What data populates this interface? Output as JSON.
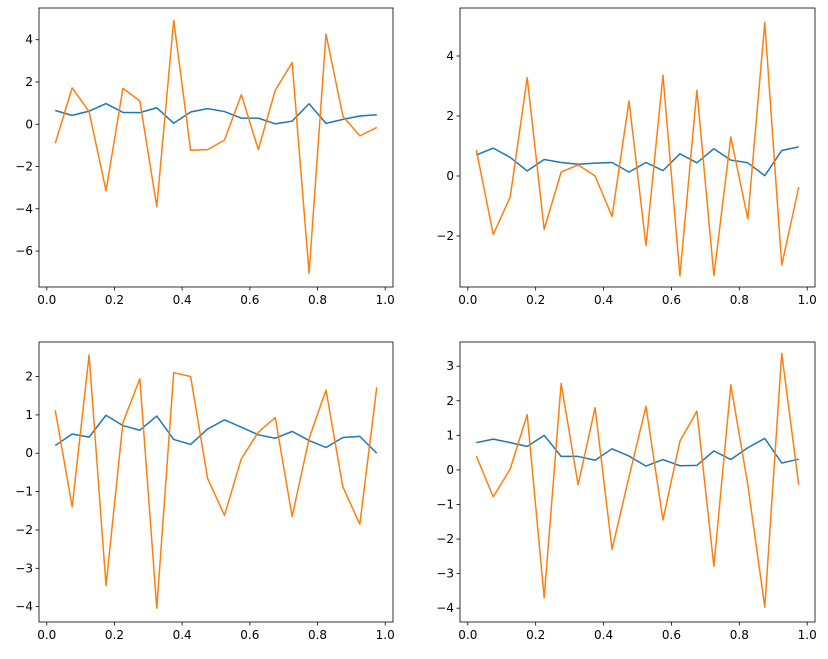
{
  "chart_data": [
    {
      "type": "line",
      "title": "",
      "xlabel": "",
      "ylabel": "",
      "xlim": [
        -0.023,
        1.023
      ],
      "ylim": [
        -7.7,
        5.5
      ],
      "xticks": [
        0.0,
        0.2,
        0.4,
        0.6,
        0.8,
        1.0
      ],
      "xtick_labels": [
        "0.0",
        "0.2",
        "0.4",
        "0.6",
        "0.8",
        "1.0"
      ],
      "yticks": [
        -6,
        -4,
        -2,
        0,
        2,
        4
      ],
      "ytick_labels": [
        "−6",
        "−4",
        "−2",
        "0",
        "2",
        "4"
      ],
      "grid": false,
      "x": [
        0.025,
        0.075,
        0.125,
        0.175,
        0.225,
        0.275,
        0.325,
        0.375,
        0.425,
        0.475,
        0.525,
        0.575,
        0.625,
        0.675,
        0.725,
        0.775,
        0.825,
        0.875,
        0.925,
        0.975
      ],
      "series": [
        {
          "color": "#1f77b4",
          "values": [
            0.65,
            0.42,
            0.62,
            0.98,
            0.56,
            0.55,
            0.78,
            0.05,
            0.58,
            0.74,
            0.6,
            0.29,
            0.29,
            0.02,
            0.15,
            0.97,
            0.04,
            0.23,
            0.39,
            0.45
          ]
        },
        {
          "color": "#ff7f0e",
          "values": [
            -0.9,
            1.72,
            0.6,
            -3.15,
            1.7,
            1.1,
            -3.9,
            4.92,
            -1.23,
            -1.2,
            -0.75,
            1.4,
            -1.2,
            1.6,
            2.92,
            -7.05,
            4.27,
            0.38,
            -0.55,
            -0.15
          ]
        }
      ]
    },
    {
      "type": "line",
      "title": "",
      "xlabel": "",
      "ylabel": "",
      "xlim": [
        -0.023,
        1.023
      ],
      "ylim": [
        -3.7,
        5.6
      ],
      "xticks": [
        0.0,
        0.2,
        0.4,
        0.6,
        0.8,
        1.0
      ],
      "xtick_labels": [
        "0.0",
        "0.2",
        "0.4",
        "0.6",
        "0.8",
        "1.0"
      ],
      "yticks": [
        -2,
        0,
        2,
        4
      ],
      "ytick_labels": [
        "−2",
        "0",
        "2",
        "4"
      ],
      "grid": false,
      "x": [
        0.025,
        0.075,
        0.125,
        0.175,
        0.225,
        0.275,
        0.325,
        0.375,
        0.425,
        0.475,
        0.525,
        0.575,
        0.625,
        0.675,
        0.725,
        0.775,
        0.825,
        0.875,
        0.925,
        0.975
      ],
      "series": [
        {
          "color": "#1f77b4",
          "values": [
            0.7,
            0.93,
            0.62,
            0.17,
            0.55,
            0.45,
            0.39,
            0.43,
            0.45,
            0.13,
            0.45,
            0.18,
            0.74,
            0.44,
            0.91,
            0.53,
            0.44,
            0.01,
            0.85,
            0.97
          ]
        },
        {
          "color": "#ff7f0e",
          "values": [
            0.87,
            -1.95,
            -0.7,
            3.28,
            -1.78,
            0.13,
            0.37,
            0.0,
            -1.35,
            2.5,
            -2.32,
            3.36,
            -3.33,
            2.86,
            -3.32,
            1.3,
            -1.43,
            5.12,
            -2.97,
            -0.37
          ]
        }
      ]
    },
    {
      "type": "line",
      "title": "",
      "xlabel": "",
      "ylabel": "",
      "xlim": [
        -0.023,
        1.023
      ],
      "ylim": [
        -4.4,
        2.9
      ],
      "xticks": [
        0.0,
        0.2,
        0.4,
        0.6,
        0.8,
        1.0
      ],
      "xtick_labels": [
        "0.0",
        "0.2",
        "0.4",
        "0.6",
        "0.8",
        "1.0"
      ],
      "yticks": [
        -4,
        -3,
        -2,
        -1,
        0,
        1,
        2
      ],
      "ytick_labels": [
        "−4",
        "−3",
        "−2",
        "−1",
        "0",
        "1",
        "2"
      ],
      "grid": false,
      "x": [
        0.025,
        0.075,
        0.125,
        0.175,
        0.225,
        0.275,
        0.325,
        0.375,
        0.425,
        0.475,
        0.525,
        0.575,
        0.625,
        0.675,
        0.725,
        0.775,
        0.825,
        0.875,
        0.925,
        0.975
      ],
      "series": [
        {
          "color": "#1f77b4",
          "values": [
            0.2,
            0.5,
            0.42,
            0.99,
            0.72,
            0.6,
            0.97,
            0.36,
            0.23,
            0.63,
            0.87,
            0.68,
            0.48,
            0.39,
            0.57,
            0.33,
            0.15,
            0.41,
            0.44,
            0.0
          ]
        },
        {
          "color": "#ff7f0e",
          "values": [
            1.12,
            -1.4,
            2.56,
            -3.45,
            0.8,
            1.94,
            -4.04,
            2.1,
            2.0,
            -0.65,
            -1.62,
            -0.14,
            0.55,
            0.93,
            -1.65,
            0.38,
            1.65,
            -0.88,
            -1.85,
            1.72
          ]
        }
      ]
    },
    {
      "type": "line",
      "title": "",
      "xlabel": "",
      "ylabel": "",
      "xlim": [
        -0.023,
        1.023
      ],
      "ylim": [
        -4.4,
        3.7
      ],
      "xticks": [
        0.0,
        0.2,
        0.4,
        0.6,
        0.8,
        1.0
      ],
      "xtick_labels": [
        "0.0",
        "0.2",
        "0.4",
        "0.6",
        "0.8",
        "1.0"
      ],
      "yticks": [
        -4,
        -3,
        -2,
        -1,
        0,
        1,
        2,
        3
      ],
      "ytick_labels": [
        "−4",
        "−3",
        "−2",
        "−1",
        "0",
        "1",
        "2",
        "3"
      ],
      "grid": false,
      "x": [
        0.025,
        0.075,
        0.125,
        0.175,
        0.225,
        0.275,
        0.325,
        0.375,
        0.425,
        0.475,
        0.525,
        0.575,
        0.625,
        0.675,
        0.725,
        0.775,
        0.825,
        0.875,
        0.925,
        0.975
      ],
      "series": [
        {
          "color": "#1f77b4",
          "values": [
            0.79,
            0.89,
            0.79,
            0.68,
            1.0,
            0.39,
            0.39,
            0.28,
            0.61,
            0.4,
            0.11,
            0.3,
            0.12,
            0.13,
            0.55,
            0.3,
            0.64,
            0.91,
            0.2,
            0.31
          ]
        },
        {
          "color": "#ff7f0e",
          "values": [
            0.4,
            -0.78,
            0.03,
            1.6,
            -3.7,
            2.5,
            -0.43,
            1.8,
            -2.3,
            -0.2,
            1.84,
            -1.45,
            0.83,
            1.7,
            -2.79,
            2.46,
            -0.43,
            -3.97,
            3.37,
            -0.43
          ]
        }
      ]
    }
  ]
}
